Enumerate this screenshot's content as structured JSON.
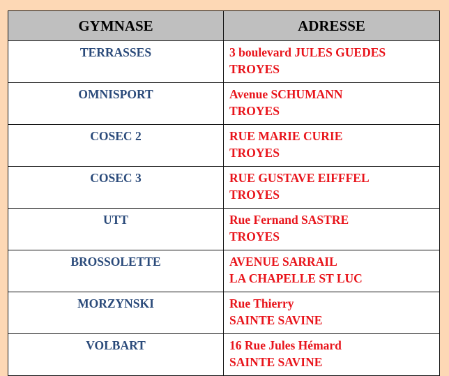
{
  "table": {
    "headers": [
      "GYMNASE",
      "ADRESSE"
    ],
    "rows": [
      {
        "name": "TERRASSES",
        "address": [
          "3 boulevard JULES GUEDES",
          "TROYES"
        ]
      },
      {
        "name": "OMNISPORT",
        "address": [
          "Avenue SCHUMANN",
          "TROYES"
        ]
      },
      {
        "name": "COSEC 2",
        "address": [
          "RUE MARIE CURIE",
          "TROYES"
        ]
      },
      {
        "name": "COSEC 3",
        "address": [
          "RUE GUSTAVE EIFFFEL",
          "TROYES"
        ]
      },
      {
        "name": "UTT",
        "address": [
          "Rue Fernand SASTRE",
          "TROYES"
        ]
      },
      {
        "name": "BROSSOLETTE",
        "address": [
          "AVENUE SARRAIL",
          "LA CHAPELLE ST LUC"
        ]
      },
      {
        "name": "MORZYNSKI",
        "address": [
          "Rue Thierry",
          "SAINTE SAVINE"
        ]
      },
      {
        "name": "VOLBART",
        "address": [
          "16 Rue Jules Hémard",
          "SAINTE SAVINE"
        ]
      }
    ]
  },
  "colors": {
    "background": "#fdd8b5",
    "header": "#bfbfbf",
    "name_text": "#2a4a7a",
    "address_text": "#e8141b"
  }
}
